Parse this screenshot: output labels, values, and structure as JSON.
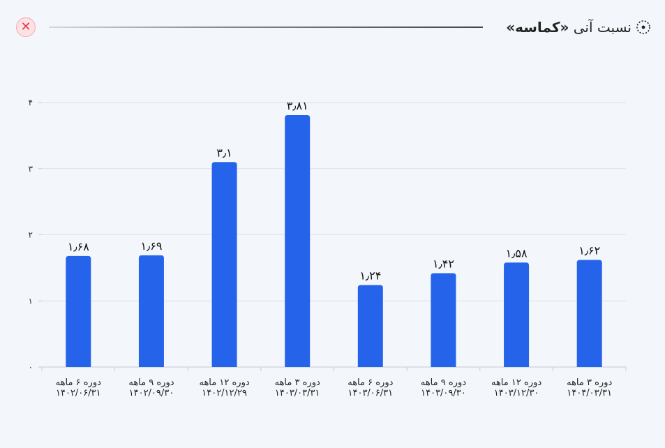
{
  "header": {
    "title_prefix": "نسبت آنی",
    "title_name": "«کماسه»",
    "icon": "settings-dots-icon",
    "close_icon": "close-icon",
    "close_symbol": "✕"
  },
  "colors": {
    "bar": "#2563eb",
    "grid": "#dde2ea",
    "axis": "#c7ccd4"
  },
  "chart_data": {
    "type": "bar",
    "title": "",
    "xlabel": "",
    "ylabel": "",
    "ylim": [
      0,
      4
    ],
    "yticks": [
      "۰",
      "۱",
      "۲",
      "۳",
      "۴"
    ],
    "grid": true,
    "categories": [
      [
        "دوره ۶ ماهه",
        "۱۴۰۲/۰۶/۳۱"
      ],
      [
        "دوره ۹ ماهه",
        "۱۴۰۲/۰۹/۳۰"
      ],
      [
        "دوره ۱۲ ماهه",
        "۱۴۰۲/۱۲/۲۹"
      ],
      [
        "دوره ۳ ماهه",
        "۱۴۰۳/۰۳/۳۱"
      ],
      [
        "دوره ۶ ماهه",
        "۱۴۰۳/۰۶/۳۱"
      ],
      [
        "دوره ۹ ماهه",
        "۱۴۰۳/۰۹/۳۰"
      ],
      [
        "دوره ۱۲ ماهه",
        "۱۴۰۳/۱۲/۳۰"
      ],
      [
        "دوره ۳ ماهه",
        "۱۴۰۴/۰۳/۳۱"
      ]
    ],
    "values": [
      1.68,
      1.69,
      3.1,
      3.81,
      1.24,
      1.42,
      1.58,
      1.62
    ],
    "value_labels": [
      "۱٫۶۸",
      "۱٫۶۹",
      "۳٫۱",
      "۳٫۸۱",
      "۱٫۲۴",
      "۱٫۴۲",
      "۱٫۵۸",
      "۱٫۶۲"
    ]
  }
}
